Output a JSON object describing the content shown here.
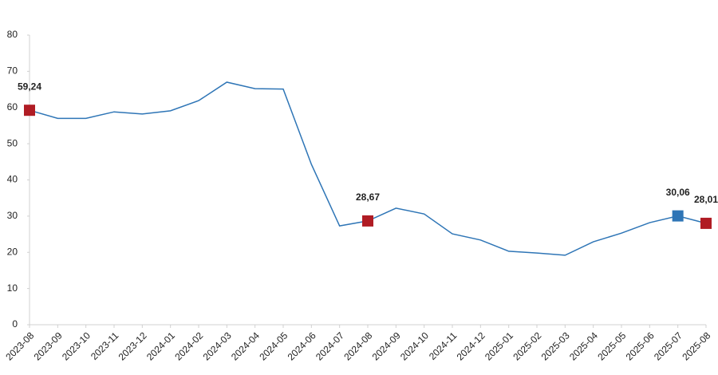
{
  "chart_data": {
    "type": "line",
    "categories": [
      "2023-08",
      "2023-09",
      "2023-10",
      "2023-11",
      "2023-12",
      "2024-01",
      "2024-02",
      "2024-03",
      "2024-04",
      "2024-05",
      "2024-06",
      "2024-07",
      "2024-08",
      "2024-09",
      "2024-10",
      "2024-11",
      "2024-12",
      "2025-01",
      "2025-02",
      "2025-03",
      "2025-04",
      "2025-05",
      "2025-06",
      "2025-07",
      "2025-08"
    ],
    "series": [
      {
        "color": "#2e75b6",
        "values": [
          59.24,
          57.0,
          57.0,
          58.8,
          58.2,
          59.1,
          61.9,
          67.0,
          65.2,
          65.1,
          44.3,
          27.3,
          28.67,
          32.2,
          30.6,
          25.1,
          23.4,
          20.3,
          19.8,
          19.2,
          22.9,
          25.3,
          28.2,
          30.06,
          28.01
        ],
        "value_labels": [
          "59,24",
          null,
          null,
          null,
          null,
          null,
          null,
          null,
          null,
          null,
          null,
          null,
          "28,67",
          null,
          null,
          null,
          null,
          null,
          null,
          null,
          null,
          null,
          null,
          "30,06",
          "28,01"
        ],
        "marker_colors": [
          "#b01c24",
          null,
          null,
          null,
          null,
          null,
          null,
          null,
          null,
          null,
          null,
          null,
          "#b01c24",
          null,
          null,
          null,
          null,
          null,
          null,
          null,
          null,
          null,
          null,
          "#2e75b6",
          "#b01c24"
        ]
      }
    ],
    "ylim": [
      0,
      80
    ],
    "yticks": [
      0,
      10,
      20,
      30,
      40,
      50,
      60,
      70,
      80
    ],
    "grid": false
  }
}
